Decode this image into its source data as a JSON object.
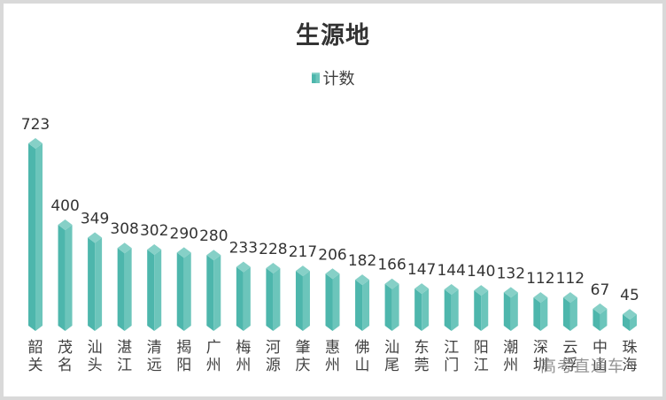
{
  "chart_data": {
    "type": "bar",
    "title": "生源地",
    "legend": [
      {
        "name": "计数",
        "color": "#4db6ac"
      }
    ],
    "legend_position": "top",
    "xlabel": "",
    "ylabel": "",
    "grid": false,
    "style": "3d-prism",
    "categories": [
      "韶关",
      "茂名",
      "汕头",
      "湛江",
      "清远",
      "揭阳",
      "广州",
      "梅州",
      "河源",
      "肇庆",
      "惠州",
      "佛山",
      "汕尾",
      "东莞",
      "江门",
      "阳江",
      "潮州",
      "深圳",
      "云浮",
      "中山",
      "珠海"
    ],
    "series": [
      {
        "name": "计数",
        "values": [
          723,
          400,
          349,
          308,
          302,
          290,
          280,
          233,
          228,
          217,
          206,
          182,
          166,
          147,
          144,
          140,
          132,
          112,
          112,
          67,
          45
        ]
      }
    ],
    "ylim": [
      0,
      723
    ]
  },
  "colors": {
    "bar_left": "#4db6ac",
    "bar_right": "#6cc5bb",
    "bar_top": "#86d0c7",
    "text": "#333333"
  },
  "watermark": "高考直通车"
}
